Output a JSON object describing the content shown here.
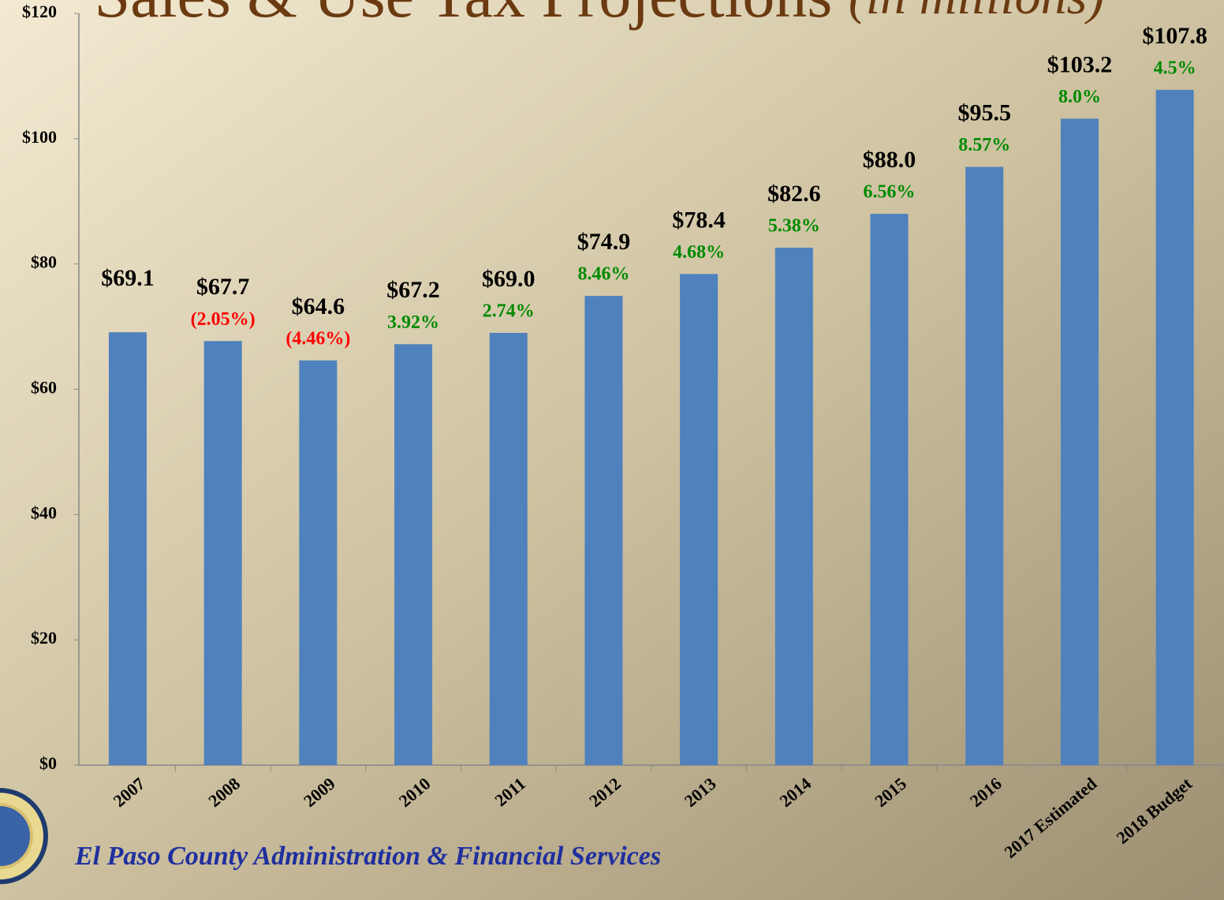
{
  "chart_data": {
    "type": "bar",
    "title": "Sales & Use Tax Projections",
    "subtitle": "(in millions)",
    "footer": "El Paso County Administration & Financial Services",
    "categories": [
      "2007",
      "2008",
      "2009",
      "2010",
      "2011",
      "2012",
      "2013",
      "2014",
      "2015",
      "2016",
      "2017 Estimated",
      "2018 Budget"
    ],
    "values": [
      69.1,
      67.7,
      64.6,
      67.2,
      69.0,
      74.9,
      78.4,
      82.6,
      88.0,
      95.5,
      103.2,
      107.8
    ],
    "value_labels": [
      "$69.1",
      "$67.7",
      "$64.6",
      "$67.2",
      "$69.0",
      "$74.9",
      "$78.4",
      "$82.6",
      "$88.0",
      "$95.5",
      "$103.2",
      "$107.8"
    ],
    "growth_labels": [
      null,
      "(2.05%)",
      "(4.46%)",
      "3.92%",
      "2.74%",
      "8.46%",
      "4.68%",
      "5.38%",
      "6.56%",
      "8.57%",
      "8.0%",
      "4.5%"
    ],
    "color": "#4f81bd",
    "positive_color": "#008a00",
    "negative_color": "#ff0000",
    "ylim": [
      0,
      120
    ],
    "yticks": [
      {
        "value": 0,
        "label": "$0"
      },
      {
        "value": 20,
        "label": "$20"
      },
      {
        "value": 40,
        "label": "$40"
      },
      {
        "value": 60,
        "label": "$60"
      },
      {
        "value": 80,
        "label": "$80"
      },
      {
        "value": 100,
        "label": "$100"
      },
      {
        "value": 120,
        "label": "$120"
      }
    ],
    "grid": false
  }
}
